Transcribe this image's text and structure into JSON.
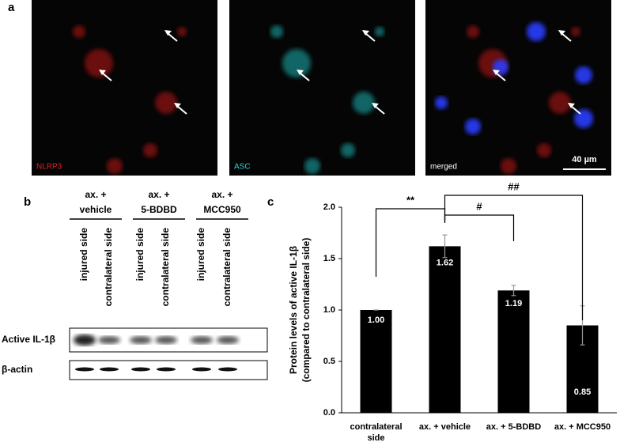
{
  "panel_a": {
    "label": "a",
    "images": [
      {
        "label": "NLRP3"
      },
      {
        "label": "ASC"
      },
      {
        "label": "merged"
      }
    ],
    "scale_bar": "40 µm"
  },
  "panel_b": {
    "label": "b",
    "groups": [
      {
        "treatment": "ax. +",
        "name": "vehicle",
        "lanes": [
          "injured side",
          "contralateral side"
        ]
      },
      {
        "treatment": "ax. +",
        "name": "5-BDBD",
        "lanes": [
          "injured side",
          "contralateral side"
        ]
      },
      {
        "treatment": "ax. +",
        "name": "MCC950",
        "lanes": [
          "injured side",
          "contralateral side"
        ]
      }
    ],
    "rows": [
      "Active IL-1β",
      "β-actin"
    ]
  },
  "chart_data": {
    "type": "bar",
    "panel_label": "c",
    "y_label": [
      "Protein levels of active IL-1β",
      "(compared to contralateral side)"
    ],
    "categories": [
      "contralateral side",
      "ax. + vehicle",
      "ax. + 5-BDBD",
      "ax. + MCC950"
    ],
    "values": [
      1.0,
      1.62,
      1.19,
      0.85
    ],
    "value_labels": [
      "1.00",
      "1.62",
      "1.19",
      "0.85"
    ],
    "errors": [
      0,
      0.11,
      0.05,
      0.19
    ],
    "color": "#000000",
    "ylim": [
      0,
      2
    ],
    "yticks": [
      {
        "value": 0,
        "label": "0.0"
      },
      {
        "value": 0.5,
        "label": "0.5"
      },
      {
        "value": 1,
        "label": "1.0"
      },
      {
        "value": 1.5,
        "label": "1.5"
      },
      {
        "value": 2,
        "label": "2.0"
      }
    ],
    "annotations": [
      "**",
      "#",
      "##"
    ]
  }
}
